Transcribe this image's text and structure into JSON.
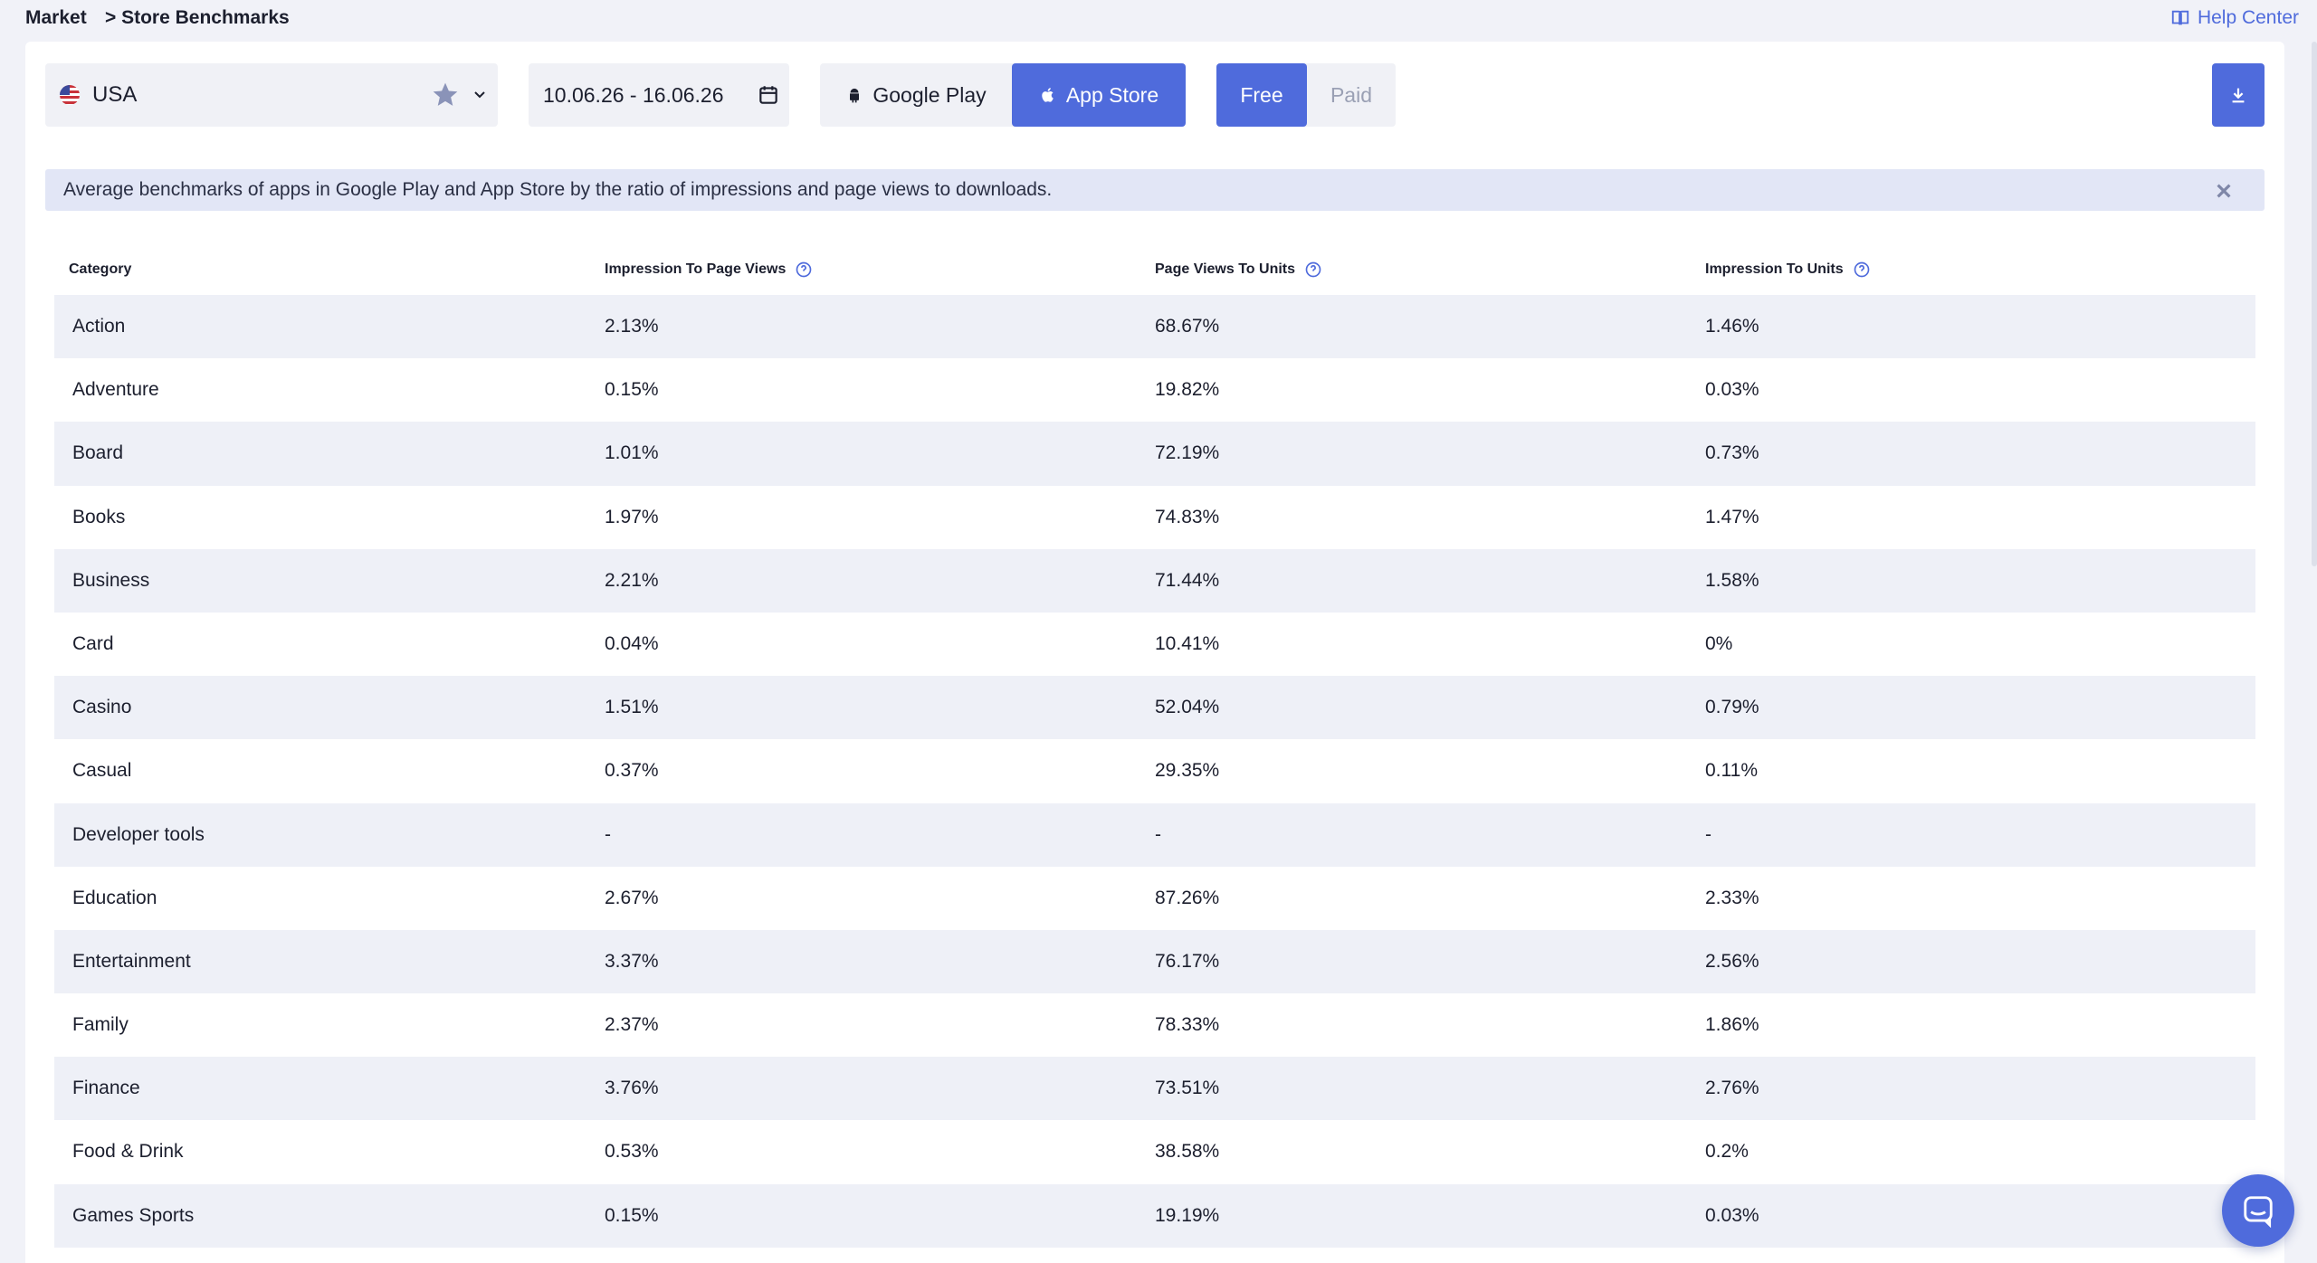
{
  "breadcrumb": {
    "root": "Market",
    "current": "> Store Benchmarks"
  },
  "help": {
    "label": "Help Center",
    "icon": "book-icon"
  },
  "filters": {
    "country": {
      "value": "USA",
      "flag": "us-flag-icon"
    },
    "date_range": {
      "value": "10.06.26 - 16.06.26"
    },
    "stores": {
      "google_play": "Google Play",
      "app_store": "App Store",
      "selected": "App Store"
    },
    "pricing": {
      "free": "Free",
      "paid": "Paid",
      "selected": "Free"
    }
  },
  "info_banner": {
    "text": "Average benchmarks of apps in Google Play and App Store by the ratio of impressions and page views to downloads."
  },
  "table": {
    "headers": [
      "Category",
      "Impression To Page Views",
      "Page Views To Units",
      "Impression To Units"
    ],
    "rows": [
      [
        "Action",
        "2.13%",
        "68.67%",
        "1.46%"
      ],
      [
        "Adventure",
        "0.15%",
        "19.82%",
        "0.03%"
      ],
      [
        "Board",
        "1.01%",
        "72.19%",
        "0.73%"
      ],
      [
        "Books",
        "1.97%",
        "74.83%",
        "1.47%"
      ],
      [
        "Business",
        "2.21%",
        "71.44%",
        "1.58%"
      ],
      [
        "Card",
        "0.04%",
        "10.41%",
        "0%"
      ],
      [
        "Casino",
        "1.51%",
        "52.04%",
        "0.79%"
      ],
      [
        "Casual",
        "0.37%",
        "29.35%",
        "0.11%"
      ],
      [
        "Developer tools",
        "-",
        "-",
        "-"
      ],
      [
        "Education",
        "2.67%",
        "87.26%",
        "2.33%"
      ],
      [
        "Entertainment",
        "3.37%",
        "76.17%",
        "2.56%"
      ],
      [
        "Family",
        "2.37%",
        "78.33%",
        "1.86%"
      ],
      [
        "Finance",
        "3.76%",
        "73.51%",
        "2.76%"
      ],
      [
        "Food & Drink",
        "0.53%",
        "38.58%",
        "0.2%"
      ],
      [
        "Games Sports",
        "0.15%",
        "19.19%",
        "0.03%"
      ]
    ]
  },
  "colors": {
    "accent": "#4f6bdc",
    "row_alt": "#eef0f7",
    "banner": "#e2e6f6"
  }
}
